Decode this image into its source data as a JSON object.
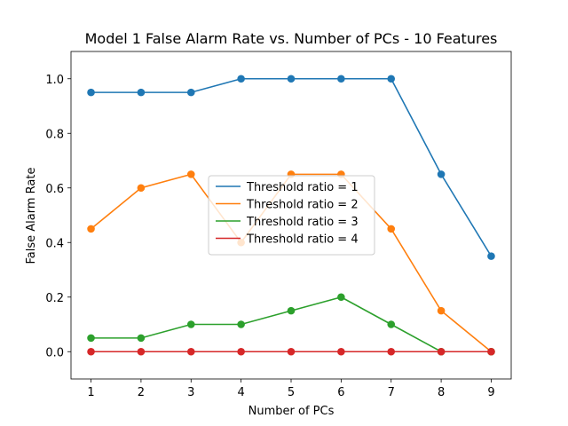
{
  "chart_data": {
    "type": "line",
    "title": "Model 1 False Alarm Rate vs. Number of PCs - 10 Features",
    "xlabel": "Number of PCs",
    "ylabel": "False Alarm Rate",
    "x": [
      1,
      2,
      3,
      4,
      5,
      6,
      7,
      8,
      9
    ],
    "xlim": [
      0.6,
      9.4
    ],
    "ylim": [
      -0.1,
      1.1
    ],
    "xticks": [
      1,
      2,
      3,
      4,
      5,
      6,
      7,
      8,
      9
    ],
    "yticks": [
      0.0,
      0.2,
      0.4,
      0.6,
      0.8,
      1.0
    ],
    "grid": false,
    "legend_position": "center",
    "series": [
      {
        "name": "Threshold ratio = 1",
        "color": "#1f77b4",
        "values": [
          0.95,
          0.95,
          0.95,
          1.0,
          1.0,
          1.0,
          1.0,
          0.65,
          0.35
        ]
      },
      {
        "name": "Threshold ratio = 2",
        "color": "#ff7f0e",
        "values": [
          0.45,
          0.6,
          0.65,
          0.4,
          0.65,
          0.65,
          0.45,
          0.15,
          0.0
        ]
      },
      {
        "name": "Threshold ratio = 3",
        "color": "#2ca02c",
        "values": [
          0.05,
          0.05,
          0.1,
          0.1,
          0.15,
          0.2,
          0.1,
          0.0,
          0.0
        ]
      },
      {
        "name": "Threshold ratio = 4",
        "color": "#d62728",
        "values": [
          0.0,
          0.0,
          0.0,
          0.0,
          0.0,
          0.0,
          0.0,
          0.0,
          0.0
        ]
      }
    ]
  }
}
